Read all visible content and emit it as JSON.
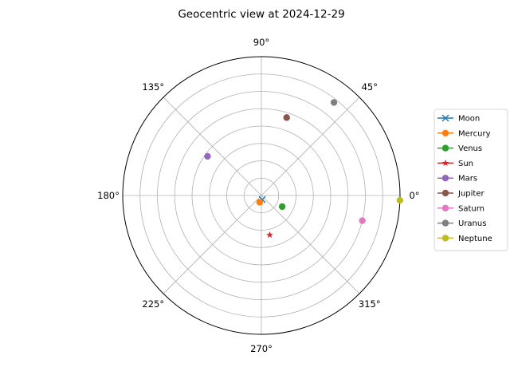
{
  "chart_data": {
    "type": "scatter",
    "projection": "polar",
    "title": "Geocentric view at 2024-12-29",
    "angle_ticks": [
      "0°",
      "45°",
      "90°",
      "135°",
      "180°",
      "225°",
      "270°",
      "315°"
    ],
    "angle_tick_values": [
      0,
      45,
      90,
      135,
      180,
      225,
      270,
      315
    ],
    "radial_grid_count": 8,
    "grid": true,
    "legend_position": "right",
    "series": [
      {
        "name": "Moon",
        "marker": "x",
        "color": "#1f77b4",
        "angle": 282,
        "radius": 0.03
      },
      {
        "name": "Mercury",
        "marker": "circle",
        "color": "#ff7f0e",
        "angle": 256,
        "radius": 0.05
      },
      {
        "name": "Venus",
        "marker": "circle",
        "color": "#2ca02c",
        "angle": 332,
        "radius": 0.17
      },
      {
        "name": "Sun",
        "marker": "star",
        "color": "#d62728",
        "angle": 282,
        "radius": 0.29
      },
      {
        "name": "Mars",
        "marker": "circle",
        "color": "#9467bd",
        "angle": 144,
        "radius": 0.48
      },
      {
        "name": "Jupiter",
        "marker": "circle",
        "color": "#8c564b",
        "angle": 72,
        "radius": 0.59
      },
      {
        "name": "Saturn",
        "marker": "circle",
        "color": "#e377c2",
        "angle": 346,
        "radius": 0.75
      },
      {
        "name": "Uranus",
        "marker": "circle",
        "color": "#7f7f7f",
        "angle": 52,
        "radius": 0.85
      },
      {
        "name": "Neptune",
        "marker": "circle",
        "color": "#bcbd22",
        "angle": 358,
        "radius": 1.0
      }
    ]
  }
}
